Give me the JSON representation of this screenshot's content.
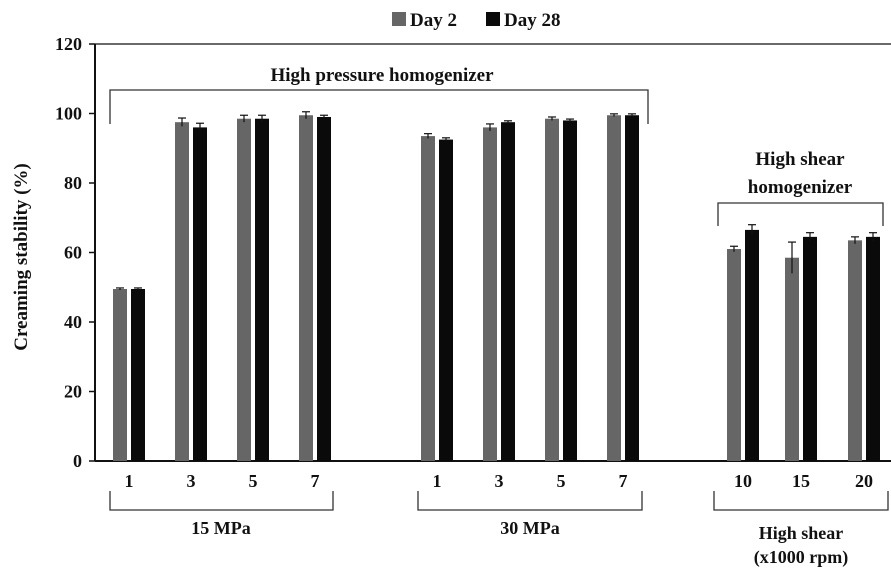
{
  "chart_data": {
    "type": "bar",
    "title": "",
    "ylabel": "Creaming stability (%)",
    "xlabel": "",
    "ylim": [
      0,
      120
    ],
    "yticks": [
      0,
      20,
      40,
      60,
      80,
      100,
      120
    ],
    "legend_position": "top-center",
    "series": [
      {
        "name": "Day 2",
        "color": "#666666"
      },
      {
        "name": "Day 28",
        "color": "#0a0a0a"
      }
    ],
    "groups": [
      {
        "label": "15 MPa",
        "categories": [
          "1",
          "3",
          "5",
          "7"
        ],
        "day2": [
          49.5,
          97.5,
          98.5,
          99.5
        ],
        "day2_err": [
          0.3,
          1.2,
          1.0,
          1.0
        ],
        "day28": [
          49.5,
          96.0,
          98.5,
          99.0
        ],
        "day28_err": [
          0.3,
          1.2,
          1.0,
          0.5
        ]
      },
      {
        "label": "30 MPa",
        "categories": [
          "1",
          "3",
          "5",
          "7"
        ],
        "day2": [
          93.5,
          96.0,
          98.5,
          99.5
        ],
        "day2_err": [
          0.7,
          1.0,
          0.5,
          0.4
        ],
        "day28": [
          92.5,
          97.5,
          98.0,
          99.5
        ],
        "day28_err": [
          0.5,
          0.4,
          0.4,
          0.4
        ]
      },
      {
        "label_lines": [
          "High shear",
          "(x1000 rpm)"
        ],
        "categories": [
          "10",
          "15",
          "20"
        ],
        "day2": [
          61.0,
          58.5,
          63.5
        ],
        "day2_err": [
          0.8,
          4.5,
          1.0
        ],
        "day28": [
          66.5,
          64.5,
          64.5
        ],
        "day28_err": [
          1.5,
          1.2,
          1.2
        ]
      }
    ],
    "annotations": [
      {
        "text": "High pressure homogenizer"
      },
      {
        "text_lines": [
          "High shear",
          "homogenizer"
        ]
      }
    ]
  }
}
